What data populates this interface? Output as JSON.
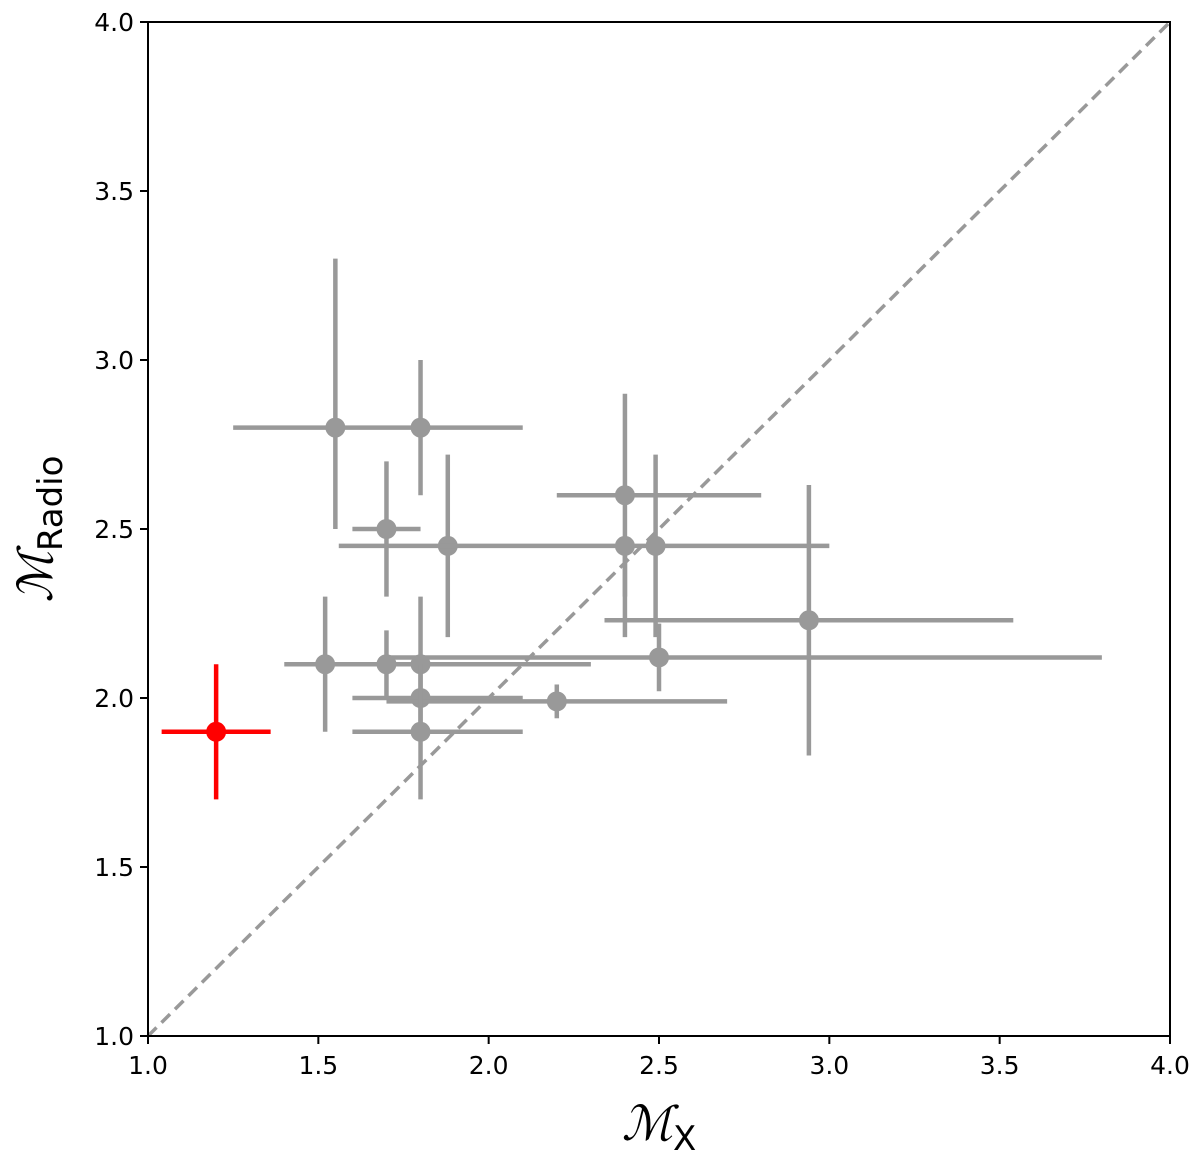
{
  "chart_data": {
    "type": "scatter",
    "title": "",
    "xlabel": {
      "symbol": "ℳ",
      "subscript": "X"
    },
    "ylabel": {
      "symbol": "ℳ",
      "subscript": "Radio"
    },
    "xlim": [
      1.0,
      4.0
    ],
    "ylim": [
      1.0,
      4.0
    ],
    "xticks": [
      "1.0",
      "1.5",
      "2.0",
      "2.5",
      "3.0",
      "3.5",
      "4.0"
    ],
    "yticks": [
      "1.0",
      "1.5",
      "2.0",
      "2.5",
      "3.0",
      "3.5",
      "4.0"
    ],
    "grid": false,
    "legend": "none",
    "reference_line": {
      "style": "dashed",
      "color": "#999999",
      "x": [
        1.0,
        4.0
      ],
      "y": [
        1.0,
        4.0
      ]
    },
    "series": [
      {
        "color": "#999999",
        "points": [
          {
            "x": 1.55,
            "y": 2.8,
            "xlo": 1.25,
            "xhi": 2.1,
            "ylo": 2.5,
            "yhi": 3.3
          },
          {
            "x": 1.8,
            "y": 2.8,
            "xlo": 1.8,
            "xhi": 1.8,
            "ylo": 2.6,
            "yhi": 3.0
          },
          {
            "x": 1.7,
            "y": 2.5,
            "xlo": 1.6,
            "xhi": 1.8,
            "ylo": 2.3,
            "yhi": 2.7
          },
          {
            "x": 1.88,
            "y": 2.45,
            "xlo": 1.88,
            "xhi": 1.88,
            "ylo": 2.18,
            "yhi": 2.72
          },
          {
            "x": 2.4,
            "y": 2.6,
            "xlo": 2.2,
            "xhi": 2.8,
            "ylo": 2.3,
            "yhi": 2.9
          },
          {
            "x": 2.4,
            "y": 2.45,
            "xlo": 1.56,
            "xhi": 3.0,
            "ylo": 2.18,
            "yhi": 2.45
          },
          {
            "x": 2.49,
            "y": 2.45,
            "xlo": 2.49,
            "xhi": 2.49,
            "ylo": 2.18,
            "yhi": 2.72
          },
          {
            "x": 2.94,
            "y": 2.23,
            "xlo": 2.34,
            "xhi": 3.54,
            "ylo": 1.83,
            "yhi": 2.63
          },
          {
            "x": 2.5,
            "y": 2.12,
            "xlo": 1.7,
            "xhi": 3.8,
            "ylo": 2.02,
            "yhi": 2.22
          },
          {
            "x": 1.52,
            "y": 2.1,
            "xlo": 1.4,
            "xhi": 2.3,
            "ylo": 1.9,
            "yhi": 2.3
          },
          {
            "x": 1.7,
            "y": 2.1,
            "xlo": 1.7,
            "xhi": 1.7,
            "ylo": 2.0,
            "yhi": 2.2
          },
          {
            "x": 1.8,
            "y": 2.1,
            "xlo": 1.8,
            "xhi": 1.8,
            "ylo": 1.9,
            "yhi": 2.3
          },
          {
            "x": 1.8,
            "y": 2.0,
            "xlo": 1.6,
            "xhi": 2.1,
            "ylo": 2.0,
            "yhi": 2.0
          },
          {
            "x": 2.2,
            "y": 1.99,
            "xlo": 1.7,
            "xhi": 2.7,
            "ylo": 1.94,
            "yhi": 2.04
          },
          {
            "x": 1.8,
            "y": 1.9,
            "xlo": 1.6,
            "xhi": 2.1,
            "ylo": 1.7,
            "yhi": 2.1
          }
        ]
      },
      {
        "color": "#ff0000",
        "points": [
          {
            "x": 1.2,
            "y": 1.9,
            "xlo": 1.04,
            "xhi": 1.36,
            "ylo": 1.7,
            "yhi": 2.1
          }
        ]
      }
    ]
  }
}
